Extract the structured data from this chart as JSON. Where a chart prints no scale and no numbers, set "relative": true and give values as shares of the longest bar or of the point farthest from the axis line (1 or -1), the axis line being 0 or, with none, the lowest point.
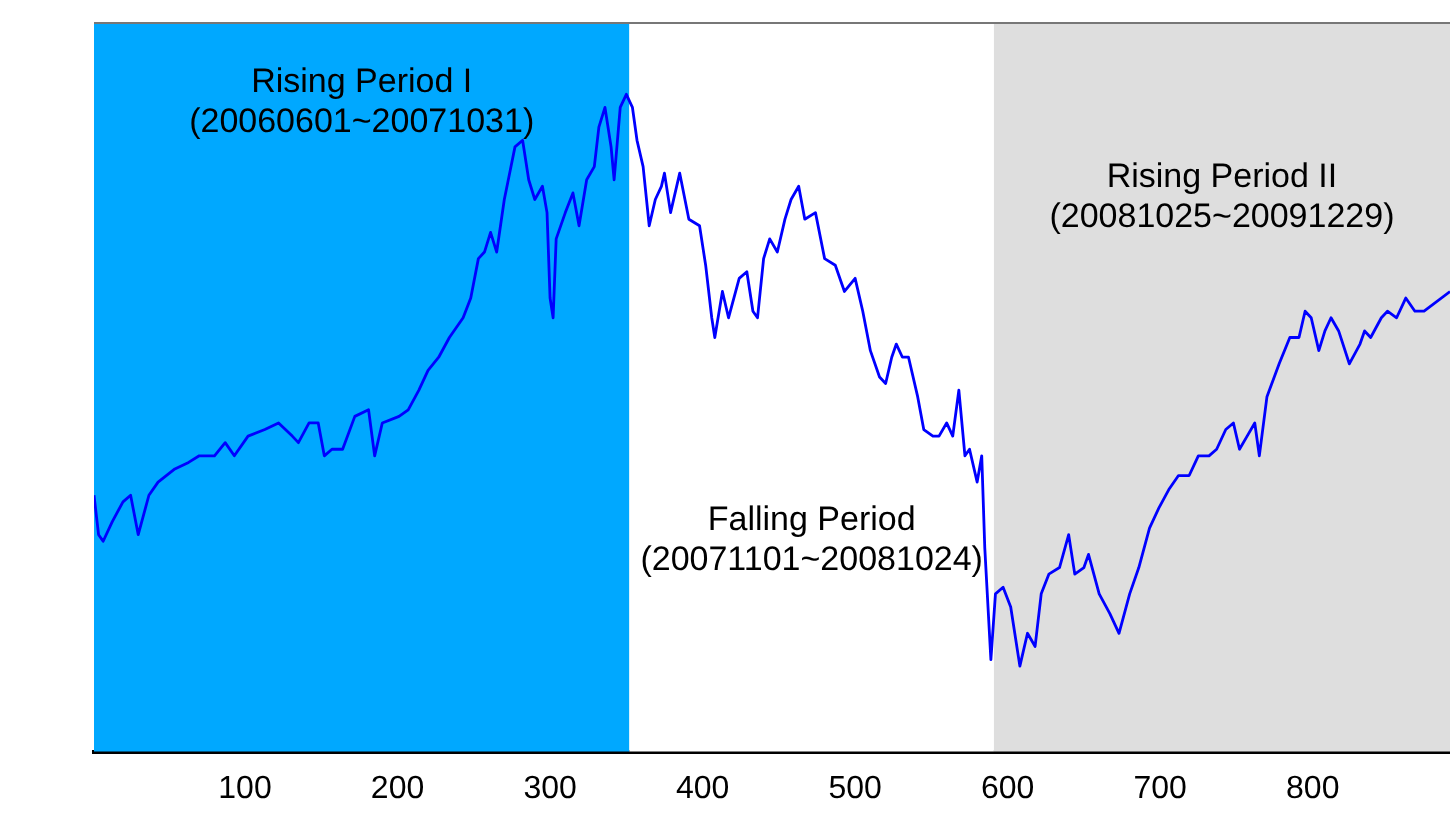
{
  "chart_data": {
    "type": "line",
    "relative": true,
    "xlim": [
      1,
      890
    ],
    "xticks": [
      100,
      200,
      300,
      400,
      500,
      600,
      700,
      800
    ],
    "legend": false,
    "grid": false,
    "marker": "none",
    "line_style": "solid",
    "bands": [
      {
        "axis": "x",
        "from": 1,
        "to": 352,
        "label": "Rising Period I\n(20060601~20071031)",
        "color": "#00a8ff"
      },
      {
        "axis": "x",
        "from": 352,
        "to": 591,
        "label": "Falling Period\n(20071101~20081024)",
        "color": "#ffffff"
      },
      {
        "axis": "x",
        "from": 591,
        "to": 890,
        "label": "Rising Period II\n(20081025~20091229)",
        "color": "#dedede"
      }
    ],
    "series": [
      {
        "color": "#0000ff",
        "x": [
          1,
          4,
          7,
          13,
          20,
          25,
          30,
          37,
          43,
          54,
          63,
          70,
          80,
          87,
          93,
          102,
          113,
          122,
          131,
          135,
          142,
          148,
          152,
          157,
          164,
          172,
          181,
          185,
          190,
          201,
          207,
          214,
          220,
          227,
          234,
          243,
          248,
          253,
          257,
          261,
          265,
          270,
          277,
          282,
          286,
          290,
          295,
          298,
          300,
          302,
          304,
          310,
          315,
          319,
          324,
          329,
          332,
          336,
          340,
          342,
          346,
          350,
          354,
          357,
          361,
          365,
          369,
          373,
          375,
          379,
          385,
          391,
          398,
          402,
          406,
          408,
          413,
          417,
          424,
          429,
          433,
          436,
          440,
          444,
          449,
          454,
          458,
          463,
          467,
          474,
          480,
          487,
          493,
          500,
          505,
          510,
          516,
          520,
          524,
          527,
          531,
          535,
          541,
          545,
          551,
          555,
          560,
          564,
          568,
          572,
          575,
          580,
          583,
          585,
          589,
          592,
          597,
          602,
          608,
          613,
          618,
          622,
          627,
          634,
          640,
          644,
          650,
          653,
          660,
          667,
          673,
          680,
          686,
          693,
          699,
          706,
          712,
          719,
          725,
          732,
          737,
          743,
          748,
          752,
          757,
          762,
          765,
          770,
          778,
          785,
          791,
          795,
          799,
          804,
          808,
          812,
          817,
          824,
          831,
          834,
          838,
          845,
          849,
          855,
          861,
          867,
          873,
          890
        ],
        "values": [
          0.39,
          0.33,
          0.32,
          0.35,
          0.38,
          0.39,
          0.33,
          0.39,
          0.41,
          0.43,
          0.44,
          0.45,
          0.45,
          0.47,
          0.45,
          0.48,
          0.49,
          0.5,
          0.48,
          0.47,
          0.5,
          0.5,
          0.45,
          0.46,
          0.46,
          0.51,
          0.52,
          0.45,
          0.5,
          0.51,
          0.52,
          0.55,
          0.58,
          0.6,
          0.63,
          0.66,
          0.69,
          0.75,
          0.76,
          0.79,
          0.76,
          0.84,
          0.92,
          0.93,
          0.87,
          0.84,
          0.86,
          0.82,
          0.69,
          0.66,
          0.78,
          0.82,
          0.85,
          0.8,
          0.87,
          0.89,
          0.95,
          0.98,
          0.92,
          0.87,
          0.98,
          1,
          0.98,
          0.93,
          0.89,
          0.8,
          0.84,
          0.86,
          0.88,
          0.82,
          0.88,
          0.81,
          0.8,
          0.74,
          0.66,
          0.63,
          0.7,
          0.66,
          0.72,
          0.73,
          0.67,
          0.66,
          0.75,
          0.78,
          0.76,
          0.81,
          0.84,
          0.86,
          0.81,
          0.82,
          0.75,
          0.74,
          0.7,
          0.72,
          0.67,
          0.61,
          0.57,
          0.56,
          0.6,
          0.62,
          0.6,
          0.6,
          0.54,
          0.49,
          0.48,
          0.48,
          0.5,
          0.48,
          0.55,
          0.45,
          0.46,
          0.41,
          0.45,
          0.31,
          0.14,
          0.24,
          0.25,
          0.22,
          0.13,
          0.18,
          0.16,
          0.24,
          0.27,
          0.28,
          0.33,
          0.27,
          0.28,
          0.3,
          0.24,
          0.21,
          0.18,
          0.24,
          0.28,
          0.34,
          0.37,
          0.4,
          0.42,
          0.42,
          0.45,
          0.45,
          0.46,
          0.49,
          0.5,
          0.46,
          0.48,
          0.5,
          0.45,
          0.54,
          0.59,
          0.63,
          0.63,
          0.67,
          0.66,
          0.61,
          0.64,
          0.66,
          0.64,
          0.59,
          0.62,
          0.64,
          0.63,
          0.66,
          0.67,
          0.66,
          0.69,
          0.67,
          0.67,
          0.7
        ]
      }
    ]
  }
}
